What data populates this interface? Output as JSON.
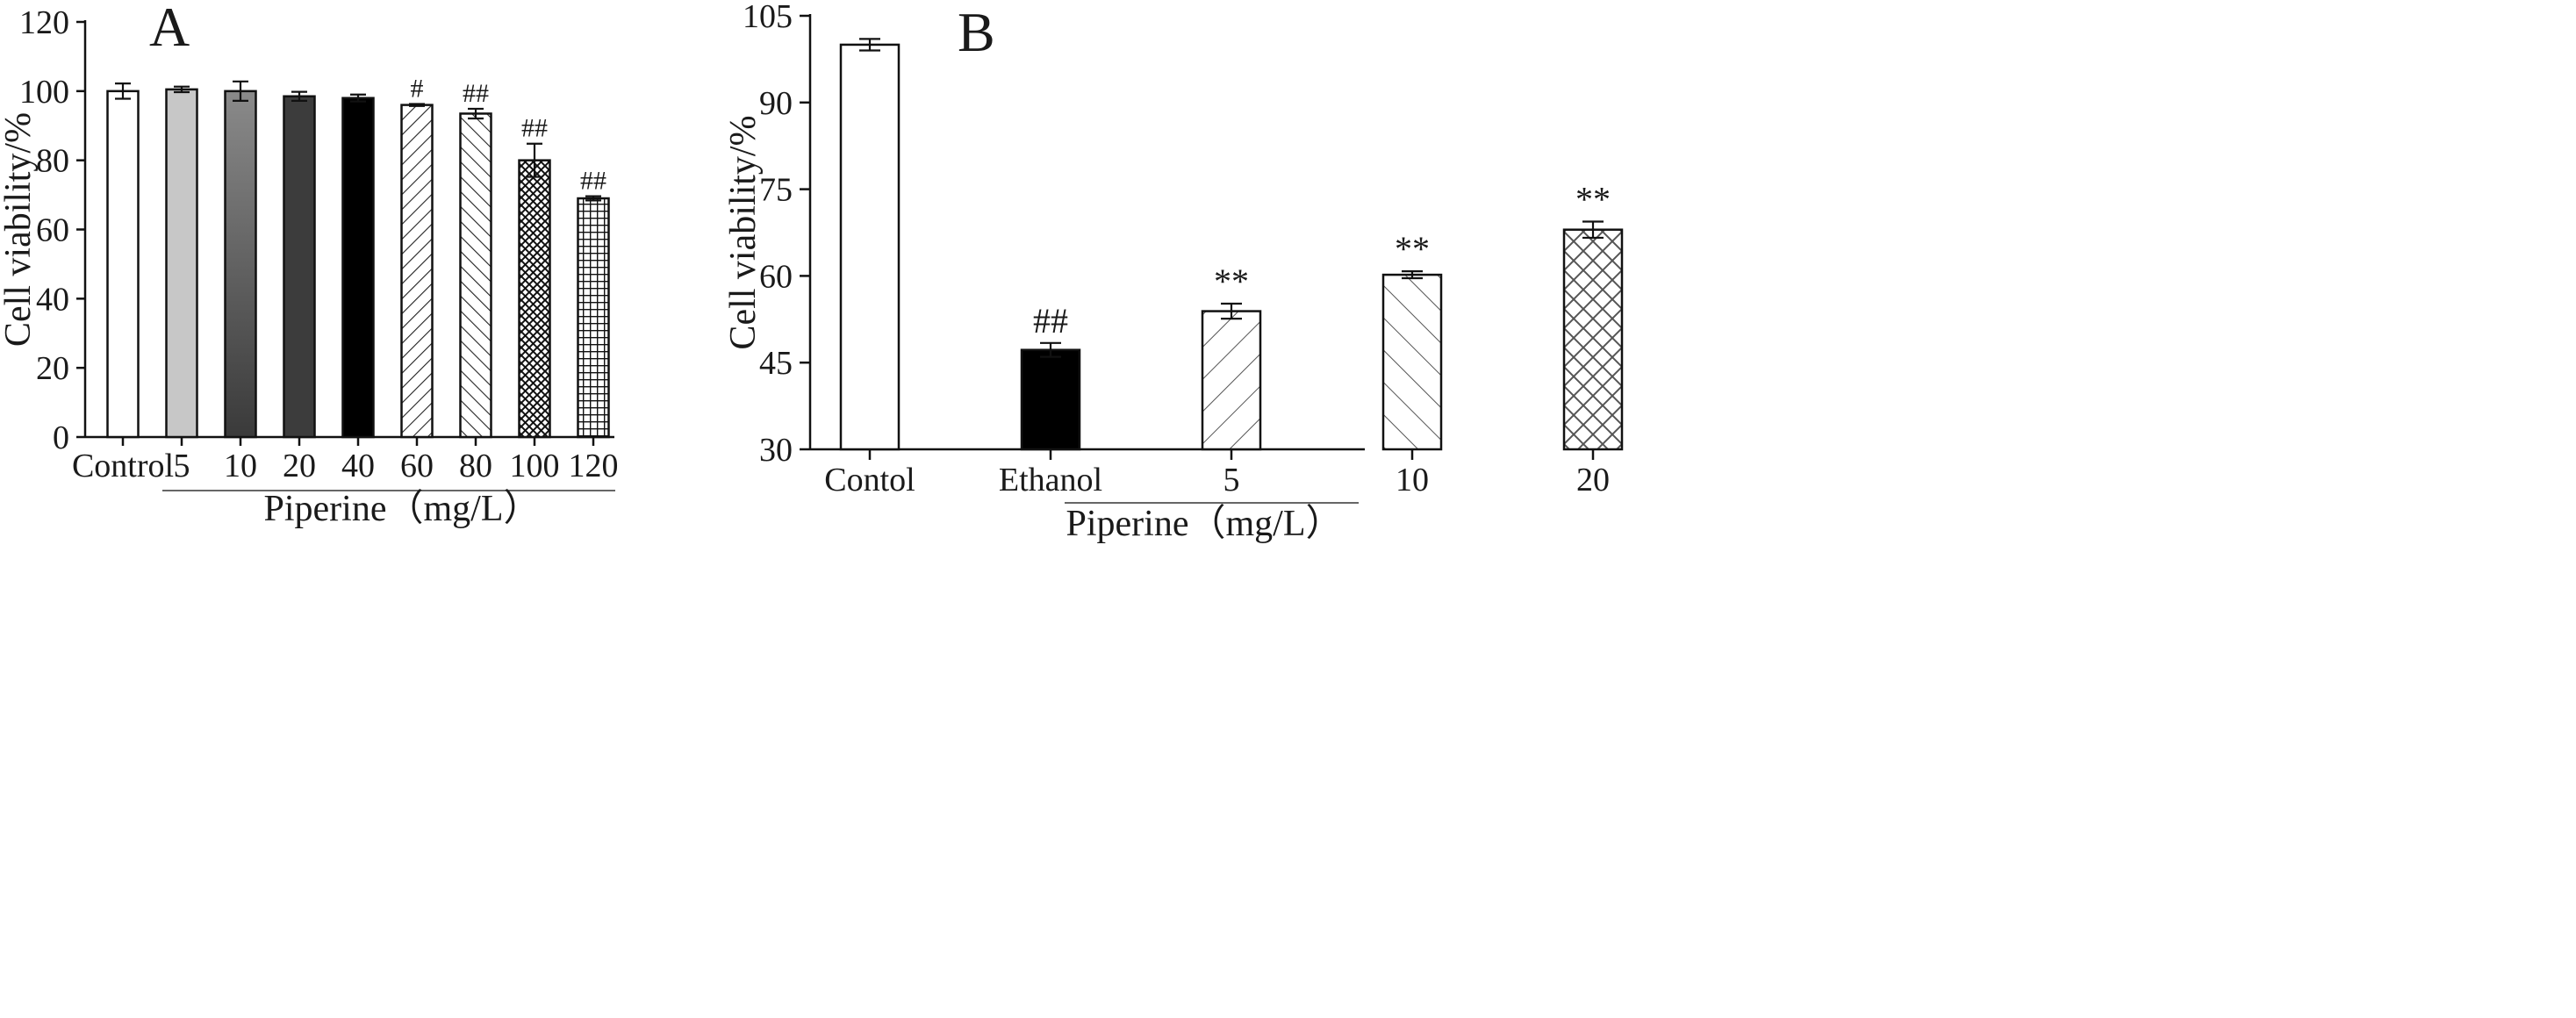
{
  "chart_data": [
    {
      "type": "bar",
      "panel": "A",
      "title": "",
      "ylabel": "Cell viability/%",
      "xlabel": "Piperine（mg/L）",
      "ylim": [
        0,
        120
      ],
      "yticks": [
        0,
        20,
        40,
        60,
        80,
        100,
        120
      ],
      "grid": false,
      "categories": [
        "Control",
        "5",
        "10",
        "20",
        "40",
        "60",
        "80",
        "100",
        "120"
      ],
      "values": [
        100,
        100.5,
        100,
        98.5,
        98,
        96,
        93.5,
        80,
        69
      ],
      "errors": [
        2.2,
        0.8,
        2.8,
        1.3,
        1.0,
        0.3,
        1.4,
        4.8,
        0.6
      ],
      "annotations": [
        "",
        "",
        "",
        "",
        "",
        "#",
        "##",
        "##",
        "##"
      ],
      "fills": [
        "white",
        "light-gray",
        "gray-gradient",
        "dark-gray",
        "black",
        "diagonal-hatch",
        "back-diagonal-hatch",
        "crosshatch-fine",
        "grid-fine"
      ],
      "group_line_from": "5",
      "group_line_to": "120"
    },
    {
      "type": "bar",
      "panel": "B",
      "title": "",
      "ylabel": "Cell viability/%",
      "xlabel": "Piperine（mg/L）",
      "ylim": [
        30,
        105
      ],
      "yticks": [
        30,
        45,
        60,
        75,
        90,
        105
      ],
      "grid": false,
      "categories": [
        "Contol",
        "Ethanol",
        "5",
        "10",
        "20"
      ],
      "values": [
        100,
        47.2,
        53.9,
        60.2,
        68
      ],
      "errors": [
        1.0,
        1.2,
        1.3,
        0.6,
        1.4
      ],
      "annotations": [
        "",
        "##",
        "**",
        "**",
        "**"
      ],
      "fills": [
        "white",
        "black",
        "diagonal-hatch",
        "back-diagonal-hatch",
        "crosshatch"
      ],
      "group_line_from": "5",
      "group_line_to": "20"
    }
  ]
}
